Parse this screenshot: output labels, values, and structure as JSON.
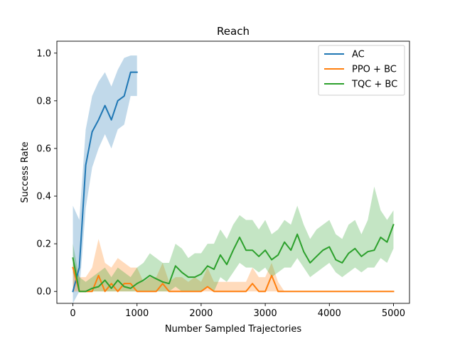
{
  "chart_data": {
    "type": "line",
    "title": "Reach",
    "xlabel": "Number Sampled Trajectories",
    "ylabel": "Success Rate",
    "xlim": [
      -250,
      5250
    ],
    "ylim": [
      -0.05,
      1.05
    ],
    "xticks": [
      0,
      1000,
      2000,
      3000,
      4000,
      5000
    ],
    "yticks": [
      0.0,
      0.2,
      0.4,
      0.6,
      0.8,
      1.0
    ],
    "xtick_labels": [
      "0",
      "1000",
      "2000",
      "3000",
      "4000",
      "5000"
    ],
    "ytick_labels": [
      "0.0",
      "0.2",
      "0.4",
      "0.6",
      "0.8",
      "1.0"
    ],
    "grid": false,
    "legend_position": "top-right",
    "series": [
      {
        "name": "AC",
        "color": "#1f77b4",
        "x": [
          0,
          100,
          200,
          300,
          400,
          500,
          600,
          700,
          800,
          900,
          1000
        ],
        "y": [
          0.0,
          0.1,
          0.53,
          0.67,
          0.72,
          0.78,
          0.72,
          0.8,
          0.82,
          0.92,
          0.92
        ],
        "band_low": [
          -0.05,
          0.0,
          0.35,
          0.52,
          0.6,
          0.66,
          0.6,
          0.68,
          0.7,
          0.82,
          0.82
        ],
        "band_high": [
          0.36,
          0.3,
          0.68,
          0.82,
          0.88,
          0.92,
          0.86,
          0.93,
          0.98,
          0.99,
          0.99
        ]
      },
      {
        "name": "PPO + BC",
        "color": "#ff7f0e",
        "x": [
          0,
          100,
          200,
          300,
          400,
          500,
          600,
          700,
          800,
          900,
          1000,
          1100,
          1200,
          1300,
          1400,
          1500,
          1600,
          1700,
          1800,
          1900,
          2000,
          2100,
          2200,
          2300,
          2400,
          2500,
          2600,
          2700,
          2800,
          2900,
          3000,
          3100,
          3200,
          3300,
          3400,
          3500,
          3600,
          3700,
          3800,
          3900,
          4000,
          4100,
          4200,
          4300,
          4400,
          4500,
          4600,
          4700,
          4800,
          4900,
          5000
        ],
        "y": [
          0.1,
          0.0,
          0.0,
          0.0,
          0.067,
          0.0,
          0.033,
          0.0,
          0.033,
          0.033,
          0.0,
          0.0,
          0.0,
          0.0,
          0.033,
          0.0,
          0.0,
          0.0,
          0.0,
          0.0,
          0.0,
          0.02,
          0.0,
          0.0,
          0.0,
          0.0,
          0.0,
          0.0,
          0.033,
          0.0,
          0.0,
          0.067,
          0.0,
          0.0,
          0.0,
          0.0,
          0.0,
          0.0,
          0.0,
          0.0,
          0.0,
          0.0,
          0.0,
          0.0,
          0.0,
          0.0,
          0.0,
          0.0,
          0.0,
          0.0,
          0.0
        ],
        "band_low": [
          0.0,
          0.0,
          0.0,
          0.0,
          0.0,
          0.0,
          0.0,
          0.0,
          0.0,
          0.0,
          0.0,
          0.0,
          0.0,
          0.0,
          0.0,
          0.0,
          0.0,
          0.0,
          0.0,
          0.0,
          0.0,
          0.0,
          0.0,
          0.0,
          0.0,
          0.0,
          0.0,
          0.0,
          0.0,
          0.0,
          0.0,
          0.0,
          0.0,
          0.0,
          0.0,
          0.0,
          0.0,
          0.0,
          0.0,
          0.0,
          0.0,
          0.0,
          0.0,
          0.0,
          0.0,
          0.0,
          0.0,
          0.0,
          0.0,
          0.0,
          0.0
        ],
        "band_high": [
          0.14,
          0.06,
          0.06,
          0.1,
          0.22,
          0.12,
          0.1,
          0.14,
          0.12,
          0.1,
          0.1,
          0.04,
          0.06,
          0.06,
          0.12,
          0.04,
          0.06,
          0.06,
          0.04,
          0.06,
          0.04,
          0.1,
          0.04,
          0.04,
          0.04,
          0.04,
          0.04,
          0.04,
          0.1,
          0.06,
          0.06,
          0.12,
          0.04,
          0.0,
          0.0,
          0.0,
          0.0,
          0.0,
          0.0,
          0.0,
          0.0,
          0.0,
          0.0,
          0.0,
          0.0,
          0.0,
          0.0,
          0.0,
          0.0,
          0.0,
          0.0
        ]
      },
      {
        "name": "TQC + BC",
        "color": "#2ca02c",
        "x": [
          0,
          100,
          200,
          300,
          400,
          500,
          600,
          700,
          800,
          900,
          1000,
          1100,
          1200,
          1300,
          1400,
          1500,
          1600,
          1700,
          1800,
          1900,
          2000,
          2100,
          2200,
          2300,
          2400,
          2500,
          2600,
          2700,
          2800,
          2900,
          3000,
          3100,
          3200,
          3300,
          3400,
          3500,
          3600,
          3700,
          3800,
          3900,
          4000,
          4100,
          4200,
          4300,
          4400,
          4500,
          4600,
          4700,
          4800,
          4900,
          5000
        ],
        "y": [
          0.14,
          0.0,
          0.0,
          0.013,
          0.02,
          0.047,
          0.013,
          0.047,
          0.02,
          0.013,
          0.033,
          0.047,
          0.067,
          0.053,
          0.04,
          0.033,
          0.107,
          0.08,
          0.06,
          0.06,
          0.073,
          0.107,
          0.093,
          0.153,
          0.113,
          0.173,
          0.227,
          0.173,
          0.173,
          0.147,
          0.173,
          0.133,
          0.153,
          0.207,
          0.173,
          0.24,
          0.167,
          0.12,
          0.147,
          0.173,
          0.187,
          0.133,
          0.12,
          0.16,
          0.18,
          0.147,
          0.167,
          0.173,
          0.227,
          0.207,
          0.28
        ],
        "band_low": [
          0.08,
          0.0,
          0.0,
          0.0,
          0.0,
          0.0,
          0.0,
          0.0,
          0.0,
          0.0,
          0.0,
          0.0,
          0.0,
          0.0,
          0.0,
          0.0,
          0.02,
          0.0,
          0.0,
          0.0,
          0.0,
          0.02,
          0.0,
          0.06,
          0.04,
          0.08,
          0.12,
          0.1,
          0.1,
          0.08,
          0.1,
          0.06,
          0.08,
          0.1,
          0.1,
          0.14,
          0.1,
          0.06,
          0.08,
          0.1,
          0.12,
          0.08,
          0.06,
          0.08,
          0.1,
          0.08,
          0.1,
          0.1,
          0.14,
          0.12,
          0.18
        ],
        "band_high": [
          0.2,
          0.06,
          0.04,
          0.06,
          0.08,
          0.1,
          0.06,
          0.1,
          0.08,
          0.06,
          0.1,
          0.12,
          0.16,
          0.14,
          0.12,
          0.12,
          0.2,
          0.18,
          0.14,
          0.16,
          0.16,
          0.2,
          0.2,
          0.26,
          0.22,
          0.28,
          0.32,
          0.3,
          0.3,
          0.26,
          0.3,
          0.24,
          0.26,
          0.3,
          0.28,
          0.36,
          0.28,
          0.22,
          0.26,
          0.28,
          0.3,
          0.24,
          0.22,
          0.28,
          0.3,
          0.24,
          0.3,
          0.44,
          0.34,
          0.3,
          0.34
        ]
      }
    ]
  }
}
